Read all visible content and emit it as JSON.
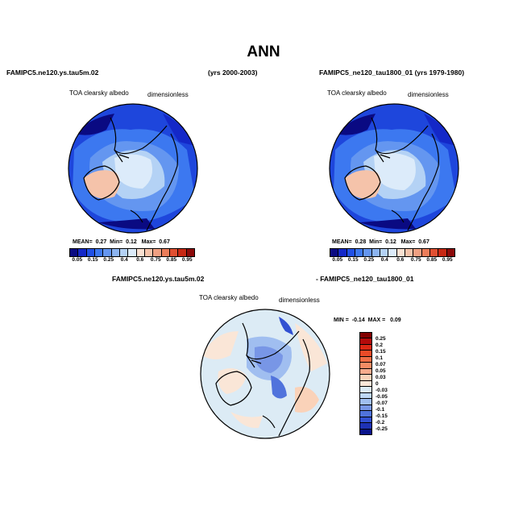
{
  "page_title": "ANN",
  "panel_left": {
    "run": "FAMIPC5.ne120.ys.tau5m.02",
    "years": "(yrs 2000-2003)",
    "variable": "TOA clearsky albedo",
    "units": "dimensionless",
    "stats": {
      "mean_label": "MEAN=",
      "mean": "0.27",
      "min_label": "Min=",
      "min": "0.12",
      "max_label": "Max=",
      "max": "0.67"
    }
  },
  "panel_right": {
    "run": "FAMIPC5_ne120_tau1800_01 (yrs 1979-1980)",
    "variable": "TOA clearsky albedo",
    "units": "dimensionless",
    "stats": {
      "mean_label": "MEAN=",
      "mean": "0.28",
      "min_label": "Min=",
      "min": "0.12",
      "max_label": "Max=",
      "max": "0.67"
    }
  },
  "panel_diff": {
    "run_a": "FAMIPC5.ne120.ys.tau5m.02",
    "run_b": "- FAMIPC5_ne120_tau1800_01",
    "variable": "TOA clearsky albedo",
    "units": "dimensionless",
    "stats": {
      "min_label": "MIN =",
      "min": "-0.14",
      "max_label": "MAX =",
      "max": "0.09"
    }
  },
  "colorbar_main": {
    "colors": [
      "#0a0a82",
      "#1428c8",
      "#2050e6",
      "#3c78f0",
      "#6496f0",
      "#8cb4f0",
      "#b4d2f5",
      "#dcebfa",
      "#fae1d2",
      "#f5c3aa",
      "#f0a082",
      "#eb7d5a",
      "#e15032",
      "#c82814",
      "#8c0a0a"
    ],
    "labels": [
      "0.05",
      "0.15",
      "0.25",
      "0.4",
      "0.6",
      "0.75",
      "0.85",
      "0.95"
    ]
  },
  "colorbar_diff": {
    "colors": [
      "#820000",
      "#b40a0a",
      "#dc2814",
      "#eb4b28",
      "#f06e46",
      "#f58c64",
      "#f5aa8c",
      "#fad2b9",
      "#fae6d7",
      "#dcebf5",
      "#bed7f5",
      "#a0bef0",
      "#7896e6",
      "#5073dc",
      "#3250d2",
      "#1e32b4",
      "#0a148c"
    ],
    "labels": [
      "0.25",
      "0.2",
      "0.15",
      "0.1",
      "0.07",
      "0.05",
      "0.03",
      "0",
      "-0.03",
      "-0.05",
      "-0.07",
      "-0.1",
      "-0.15",
      "-0.2",
      "-0.25"
    ]
  }
}
